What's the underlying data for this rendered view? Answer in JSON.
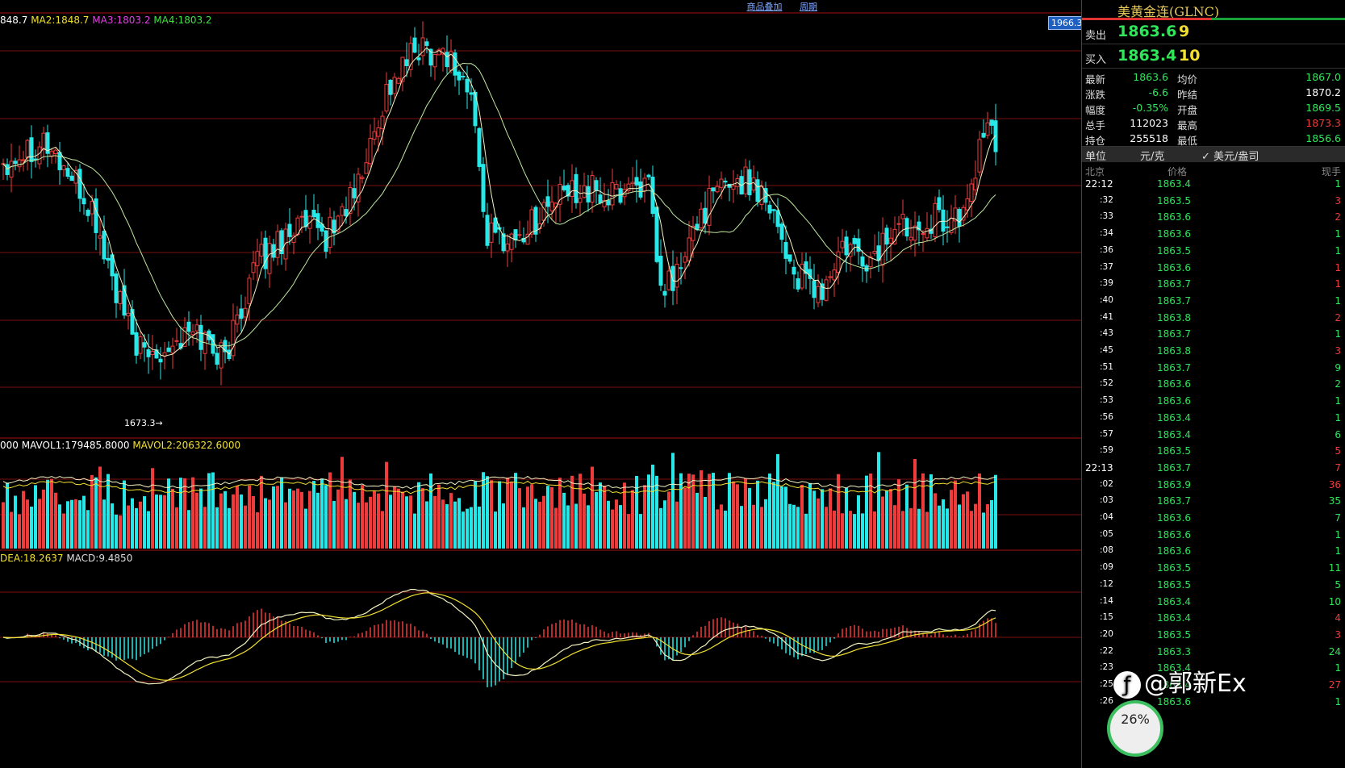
{
  "header": {
    "links": [
      "商品叠加",
      "周期"
    ],
    "current_price_tag": "1966.3"
  },
  "legends": {
    "ma_prefix": "848.7",
    "ma2": "MA2:1848.7",
    "ma3": "MA3:1803.2",
    "ma4": "MA4:1803.2",
    "vol_prefix": "000",
    "mavol1": "MAVOL1:179485.8000",
    "mavol2": "MAVOL2:206322.6000",
    "dea": "DEA:18.2637",
    "macd": "MACD:9.4850",
    "low_label": "1673.3→"
  },
  "colors": {
    "up": "#ee3b3b",
    "down": "#27e8e8",
    "ma_fast": "#f2f2c0",
    "ma_slow": "#bfe8a0",
    "grid": "#7a1010",
    "ma3_text": "#e040e0",
    "ma4_text": "#40e040",
    "mavol2_text": "#f2e02f"
  },
  "sidebar": {
    "title": "美黄金连(GLNC)",
    "sell_label": "卖出",
    "sell_price": "1863.6",
    "sell_vol": "9",
    "buy_label": "买入",
    "buy_price": "1863.4",
    "buy_vol": "10",
    "stats": [
      {
        "l1": "最新",
        "v1": "1863.6",
        "c1": "#2fe55a",
        "l2": "均价",
        "v2": "1867.0",
        "c2": "#2fe55a"
      },
      {
        "l1": "涨跌",
        "v1": "-6.6",
        "c1": "#2fe55a",
        "l2": "昨结",
        "v2": "1870.2",
        "c2": "#ffffff"
      },
      {
        "l1": "幅度",
        "v1": "-0.35%",
        "c1": "#2fe55a",
        "l2": "开盘",
        "v2": "1869.5",
        "c2": "#2fe55a"
      },
      {
        "l1": "总手",
        "v1": "112023",
        "c1": "#ffffff",
        "l2": "最高",
        "v2": "1873.3",
        "c2": "#ee3b3b"
      },
      {
        "l1": "持仓",
        "v1": "255518",
        "c1": "#ffffff",
        "l2": "最低",
        "v2": "1856.6",
        "c2": "#2fe55a"
      }
    ],
    "unit_label": "单位",
    "unit_value": "元/克",
    "unit_alt": "✓ 美元/盎司",
    "tick_head": {
      "time": "北京",
      "price": "价格",
      "vol": "现手"
    },
    "ticks": [
      {
        "t": "22:12",
        "p": "1863.4",
        "v": "1",
        "vc": "#2fe55a",
        "major": true
      },
      {
        "t": ":32",
        "p": "1863.5",
        "v": "3",
        "vc": "#ee3b3b"
      },
      {
        "t": ":33",
        "p": "1863.6",
        "v": "2",
        "vc": "#ee3b3b"
      },
      {
        "t": ":34",
        "p": "1863.6",
        "v": "1",
        "vc": "#2fe55a"
      },
      {
        "t": ":36",
        "p": "1863.5",
        "v": "1",
        "vc": "#2fe55a"
      },
      {
        "t": ":37",
        "p": "1863.6",
        "v": "1",
        "vc": "#ee3b3b"
      },
      {
        "t": ":39",
        "p": "1863.7",
        "v": "1",
        "vc": "#ee3b3b"
      },
      {
        "t": ":40",
        "p": "1863.7",
        "v": "1",
        "vc": "#2fe55a"
      },
      {
        "t": ":41",
        "p": "1863.8",
        "v": "2",
        "vc": "#ee3b3b"
      },
      {
        "t": ":43",
        "p": "1863.7",
        "v": "1",
        "vc": "#2fe55a"
      },
      {
        "t": ":45",
        "p": "1863.8",
        "v": "3",
        "vc": "#ee3b3b"
      },
      {
        "t": ":51",
        "p": "1863.7",
        "v": "9",
        "vc": "#2fe55a"
      },
      {
        "t": ":52",
        "p": "1863.6",
        "v": "2",
        "vc": "#2fe55a"
      },
      {
        "t": ":53",
        "p": "1863.6",
        "v": "1",
        "vc": "#2fe55a"
      },
      {
        "t": ":56",
        "p": "1863.4",
        "v": "1",
        "vc": "#2fe55a"
      },
      {
        "t": ":57",
        "p": "1863.4",
        "v": "6",
        "vc": "#2fe55a"
      },
      {
        "t": ":59",
        "p": "1863.5",
        "v": "5",
        "vc": "#ee3b3b"
      },
      {
        "t": "22:13",
        "p": "1863.7",
        "v": "7",
        "vc": "#ee3b3b",
        "major": true
      },
      {
        "t": ":02",
        "p": "1863.9",
        "v": "36",
        "vc": "#ee3b3b"
      },
      {
        "t": ":03",
        "p": "1863.7",
        "v": "35",
        "vc": "#2fe55a"
      },
      {
        "t": ":04",
        "p": "1863.6",
        "v": "7",
        "vc": "#2fe55a"
      },
      {
        "t": ":05",
        "p": "1863.6",
        "v": "1",
        "vc": "#2fe55a"
      },
      {
        "t": ":08",
        "p": "1863.6",
        "v": "1",
        "vc": "#2fe55a"
      },
      {
        "t": ":09",
        "p": "1863.5",
        "v": "11",
        "vc": "#2fe55a"
      },
      {
        "t": ":12",
        "p": "1863.5",
        "v": "5",
        "vc": "#2fe55a"
      },
      {
        "t": ":14",
        "p": "1863.4",
        "v": "10",
        "vc": "#2fe55a"
      },
      {
        "t": ":15",
        "p": "1863.4",
        "v": "4",
        "vc": "#ee3b3b"
      },
      {
        "t": ":20",
        "p": "1863.5",
        "v": "3",
        "vc": "#ee3b3b"
      },
      {
        "t": ":22",
        "p": "1863.3",
        "v": "24",
        "vc": "#2fe55a"
      },
      {
        "t": ":23",
        "p": "1863.4",
        "v": "1",
        "vc": "#2fe55a"
      },
      {
        "t": ":25",
        "p": "1863.4",
        "v": "27",
        "vc": "#ee3b3b"
      },
      {
        "t": ":26",
        "p": "1863.6",
        "v": "1",
        "vc": "#2fe55a"
      }
    ]
  },
  "watermark": "@郭新Ex",
  "badge": "26%",
  "chart_data": {
    "type": "candlestick",
    "title": "美黄金连(GLNC)",
    "price_anchor_points": [
      [
        0,
        1845
      ],
      [
        10,
        1862
      ],
      [
        15,
        1840
      ],
      [
        22,
        1805
      ],
      [
        30,
        1720
      ],
      [
        35,
        1690
      ],
      [
        40,
        1700
      ],
      [
        48,
        1710
      ],
      [
        55,
        1690
      ],
      [
        62,
        1760
      ],
      [
        72,
        1795
      ],
      [
        80,
        1785
      ],
      [
        88,
        1825
      ],
      [
        95,
        1900
      ],
      [
        103,
        1935
      ],
      [
        110,
        1930
      ],
      [
        116,
        1895
      ],
      [
        120,
        1785
      ],
      [
        128,
        1785
      ],
      [
        135,
        1810
      ],
      [
        143,
        1825
      ],
      [
        150,
        1815
      ],
      [
        157,
        1830
      ],
      [
        160,
        1820
      ],
      [
        163,
        1740
      ],
      [
        168,
        1760
      ],
      [
        173,
        1805
      ],
      [
        180,
        1830
      ],
      [
        186,
        1828
      ],
      [
        190,
        1815
      ],
      [
        196,
        1755
      ],
      [
        203,
        1740
      ],
      [
        208,
        1775
      ],
      [
        215,
        1765
      ],
      [
        220,
        1790
      ],
      [
        228,
        1800
      ],
      [
        233,
        1800
      ],
      [
        238,
        1800
      ],
      [
        243,
        1868
      ],
      [
        246,
        1860
      ]
    ],
    "low_marker": 1673.3,
    "price_range": [
      1630,
      1960
    ]
  }
}
